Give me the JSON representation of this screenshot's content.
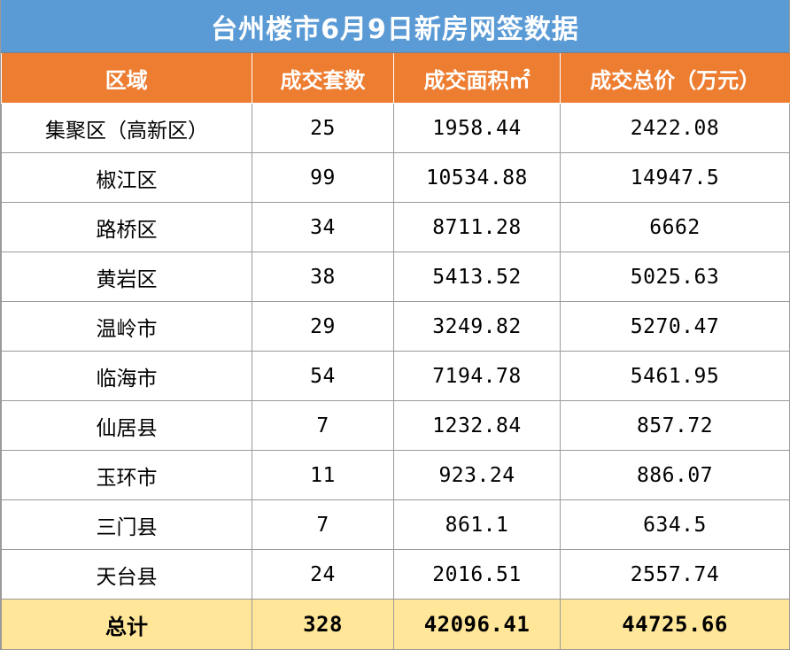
{
  "title": "台州楼市6月9日新房网签数据",
  "headers": [
    "区域",
    "成交套数",
    "成交面积㎡",
    "成交总价（万元）"
  ],
  "rows": [
    [
      "集聚区（高新区）",
      "25",
      "1958.44",
      "2422.08"
    ],
    [
      "椒江区",
      "99",
      "10534.88",
      "14947.5"
    ],
    [
      "路桥区",
      "34",
      "8711.28",
      "6662"
    ],
    [
      "黄岩区",
      "38",
      "5413.52",
      "5025.63"
    ],
    [
      "温岭市",
      "29",
      "3249.82",
      "5270.47"
    ],
    [
      "临海市",
      "54",
      "7194.78",
      "5461.95"
    ],
    [
      "仙居县",
      "7",
      "1232.84",
      "857.72"
    ],
    [
      "玉环市",
      "11",
      "923.24",
      "886.07"
    ],
    [
      "三门县",
      "7",
      "861.1",
      "634.5"
    ],
    [
      "天台县",
      "24",
      "2016.51",
      "2557.74"
    ]
  ],
  "total": [
    "总计",
    "328",
    "42096.41",
    "44725.66"
  ],
  "colors": {
    "title_bg": "#5b9bd5",
    "header_bg": "#ed7d31",
    "total_bg": "#ffe699"
  }
}
